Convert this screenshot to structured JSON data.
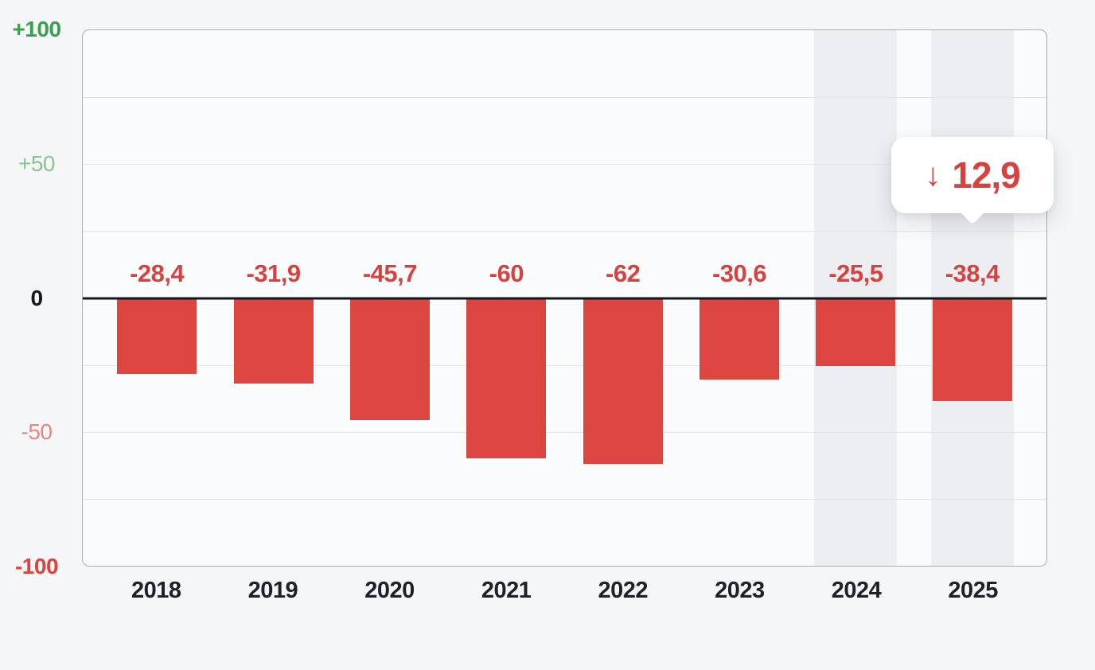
{
  "page": {
    "background_color": "#f5f6f8",
    "plot_background_color": "#fafbfd",
    "highlight_band_color": "#edeef1",
    "gridline_color": "#e3e4e7",
    "border_color": "#a9acb3"
  },
  "chart_data": {
    "type": "bar",
    "title": "",
    "xlabel": "",
    "ylabel": "",
    "categories": [
      "2018",
      "2019",
      "2020",
      "2021",
      "2022",
      "2023",
      "2024",
      "2025"
    ],
    "values": [
      -28.4,
      -31.9,
      -45.7,
      -60,
      -62,
      -30.6,
      -25.5,
      -38.4
    ],
    "value_labels": [
      "-28,4",
      "-31,9",
      "-45,7",
      "-60",
      "-62",
      "-30,6",
      "-25,5",
      "-38,4"
    ],
    "ylim": [
      -100,
      100
    ],
    "grid": true,
    "grid_step": 25,
    "minor_grid_values": [
      75,
      50,
      25,
      -25,
      -50,
      -75
    ],
    "y_ticks": [
      {
        "value": 100,
        "label": "+100",
        "color": "#3aa04e",
        "bold": true
      },
      {
        "value": 50,
        "label": "+50",
        "color": "#8ac492",
        "bold": false
      },
      {
        "value": 0,
        "label": "0",
        "color": "#15171e",
        "bold": true
      },
      {
        "value": -50,
        "label": "-50",
        "color": "#ea8682",
        "bold": false
      },
      {
        "value": -100,
        "label": "-100",
        "color": "#d84540",
        "bold": true
      }
    ],
    "bar_color": "#dc4540",
    "value_label_color": "#d8423e",
    "x_label_color": "#1d2029",
    "zero_line_color": "#15171e",
    "highlighted_categories": [
      "2024",
      "2025"
    ],
    "legend_position": "none"
  },
  "tooltip": {
    "icon": "down-arrow-icon",
    "arrow_glyph": "↓",
    "value": "12,9",
    "target_category": "2025",
    "text_color": "#d8423e",
    "background_color": "#ffffff"
  }
}
